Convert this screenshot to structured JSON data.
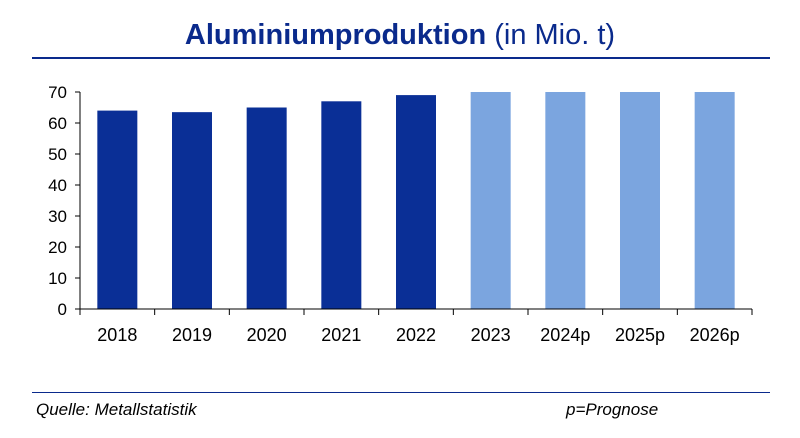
{
  "title": {
    "main": "Aluminiumproduktion",
    "unit": "(in Mio. t)"
  },
  "footer": {
    "source": "Quelle: Metallstatistik",
    "note": "p=Prognose"
  },
  "colors": {
    "title": "#0a2a8c",
    "actual": "#0a2f96",
    "forecast": "#7ba5df"
  },
  "chart_data": {
    "type": "bar",
    "title": "Aluminiumproduktion (in Mio. t)",
    "categories": [
      "2018",
      "2019",
      "2020",
      "2021",
      "2022",
      "2023",
      "2024p",
      "2025p",
      "2026p"
    ],
    "values": [
      64,
      63.5,
      65,
      67,
      69,
      70,
      70,
      70,
      70
    ],
    "ylim": [
      0,
      70
    ],
    "yticks": [
      0,
      10,
      20,
      30,
      40,
      50,
      60,
      70
    ],
    "grid": false,
    "legend": "none"
  }
}
